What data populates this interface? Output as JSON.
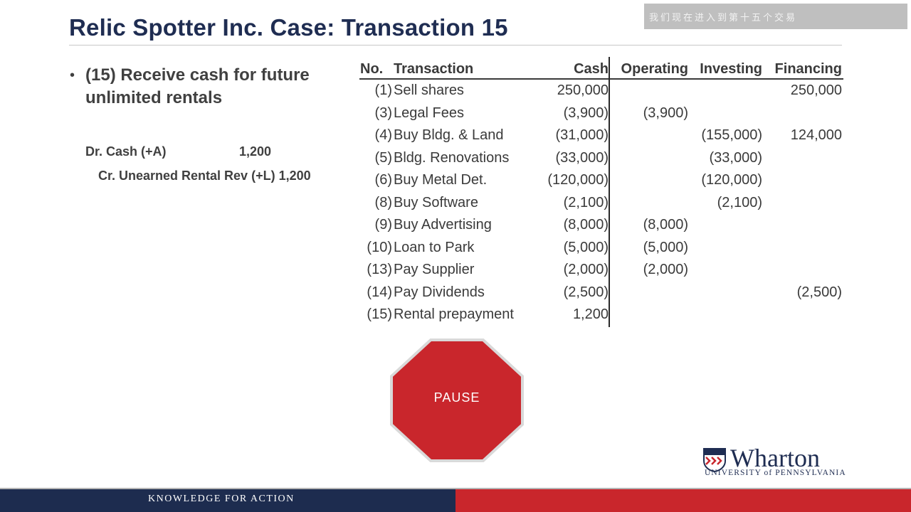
{
  "slide": {
    "title": "Relic Spotter Inc. Case: Transaction 15",
    "caption_overlay": "我们现在进入到第十五个交易"
  },
  "left": {
    "bullet_symbol": "•",
    "bullet_text": "(15) Receive cash for future unlimited rentals",
    "debit_label": "Dr. Cash (+A)",
    "debit_amount": "1,200",
    "credit_line": "Cr. Unearned Rental Rev (+L) 1,200"
  },
  "table": {
    "headers": {
      "no": "No.",
      "transaction": "Transaction",
      "cash": "Cash",
      "operating": "Operating",
      "investing": "Investing",
      "financing": "Financing"
    },
    "rows": [
      {
        "no": "(1)",
        "transaction": "Sell shares",
        "cash": "250,000",
        "operating": "",
        "investing": "",
        "financing": "250,000"
      },
      {
        "no": "(3)",
        "transaction": "Legal Fees",
        "cash": "(3,900)",
        "operating": "(3,900)",
        "investing": "",
        "financing": ""
      },
      {
        "no": "(4)",
        "transaction": "Buy Bldg. & Land",
        "cash": "(31,000)",
        "operating": "",
        "investing": "(155,000)",
        "financing": "124,000"
      },
      {
        "no": "(5)",
        "transaction": "Bldg. Renovations",
        "cash": "(33,000)",
        "operating": "",
        "investing": "(33,000)",
        "financing": ""
      },
      {
        "no": "(6)",
        "transaction": "Buy Metal Det.",
        "cash": "(120,000)",
        "operating": "",
        "investing": "(120,000)",
        "financing": ""
      },
      {
        "no": "(8)",
        "transaction": "Buy Software",
        "cash": "(2,100)",
        "operating": "",
        "investing": "(2,100)",
        "financing": ""
      },
      {
        "no": "(9)",
        "transaction": "Buy Advertising",
        "cash": "(8,000)",
        "operating": "(8,000)",
        "investing": "",
        "financing": ""
      },
      {
        "no": "(10)",
        "transaction": "Loan to Park",
        "cash": "(5,000)",
        "operating": "(5,000)",
        "investing": "",
        "financing": ""
      },
      {
        "no": "(13)",
        "transaction": "Pay Supplier",
        "cash": "(2,000)",
        "operating": "(2,000)",
        "investing": "",
        "financing": ""
      },
      {
        "no": "(14)",
        "transaction": "Pay Dividends",
        "cash": "(2,500)",
        "operating": "",
        "investing": "",
        "financing": "(2,500)"
      },
      {
        "no": "(15)",
        "transaction": "Rental prepayment",
        "cash": "1,200",
        "operating": "",
        "investing": "",
        "financing": ""
      }
    ]
  },
  "pause_button": {
    "label": "PAUSE",
    "color": "#c9262c"
  },
  "logo": {
    "wordmark": "Wharton",
    "subtitle": "UNIVERSITY of PENNSYLVANIA"
  },
  "footer": {
    "tagline": "KNOWLEDGE FOR ACTION",
    "navy": "#1d2c4f",
    "red": "#c9262c"
  }
}
